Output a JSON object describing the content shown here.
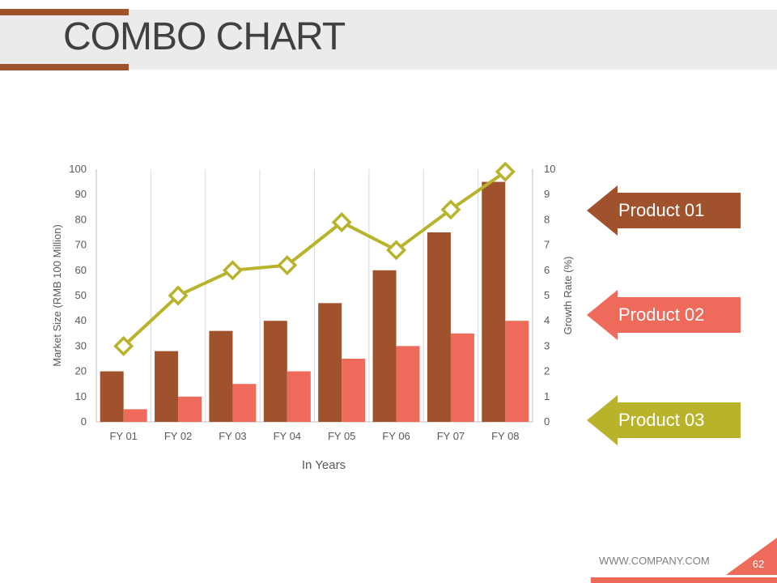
{
  "slide": {
    "title": "COMBO CHART",
    "footer_url": "WWW.COMPANY.COM",
    "page_number": "62"
  },
  "colors": {
    "product01": "#a0522d",
    "product02": "#ee6a5a",
    "product03": "#b9b32c",
    "accent": "#a0522d"
  },
  "legend": [
    {
      "label": "Product 01",
      "color": "#a0522d"
    },
    {
      "label": "Product 02",
      "color": "#ee6a5a"
    },
    {
      "label": "Product 03",
      "color": "#b9b32c"
    }
  ],
  "chart_data": {
    "type": "bar",
    "categories": [
      "FY 01",
      "FY 02",
      "FY 03",
      "FY 04",
      "FY 05",
      "FY 06",
      "FY 07",
      "FY 08"
    ],
    "series": [
      {
        "name": "Product 01",
        "kind": "bar",
        "axis": "left",
        "values": [
          20,
          28,
          36,
          40,
          47,
          60,
          75,
          95
        ]
      },
      {
        "name": "Product 02",
        "kind": "bar",
        "axis": "left",
        "values": [
          5,
          10,
          15,
          20,
          25,
          30,
          35,
          40
        ]
      },
      {
        "name": "Product 03",
        "kind": "line",
        "axis": "right",
        "values": [
          3.0,
          5.0,
          6.0,
          6.2,
          7.9,
          6.8,
          8.4,
          9.9
        ]
      }
    ],
    "xlabel": "In Years",
    "ylabel": "Market Size (RMB 100 Million)",
    "y2label": "Growth Rate (%)",
    "ylim": [
      0,
      100
    ],
    "y2lim": [
      0,
      10
    ],
    "yticks": [
      "0",
      "10",
      "20",
      "30",
      "40",
      "50",
      "60",
      "70",
      "80",
      "90",
      "100"
    ],
    "y2ticks": [
      "0",
      "1",
      "2",
      "3",
      "4",
      "5",
      "6",
      "7",
      "8",
      "9",
      "10"
    ],
    "grid": "vertical"
  }
}
